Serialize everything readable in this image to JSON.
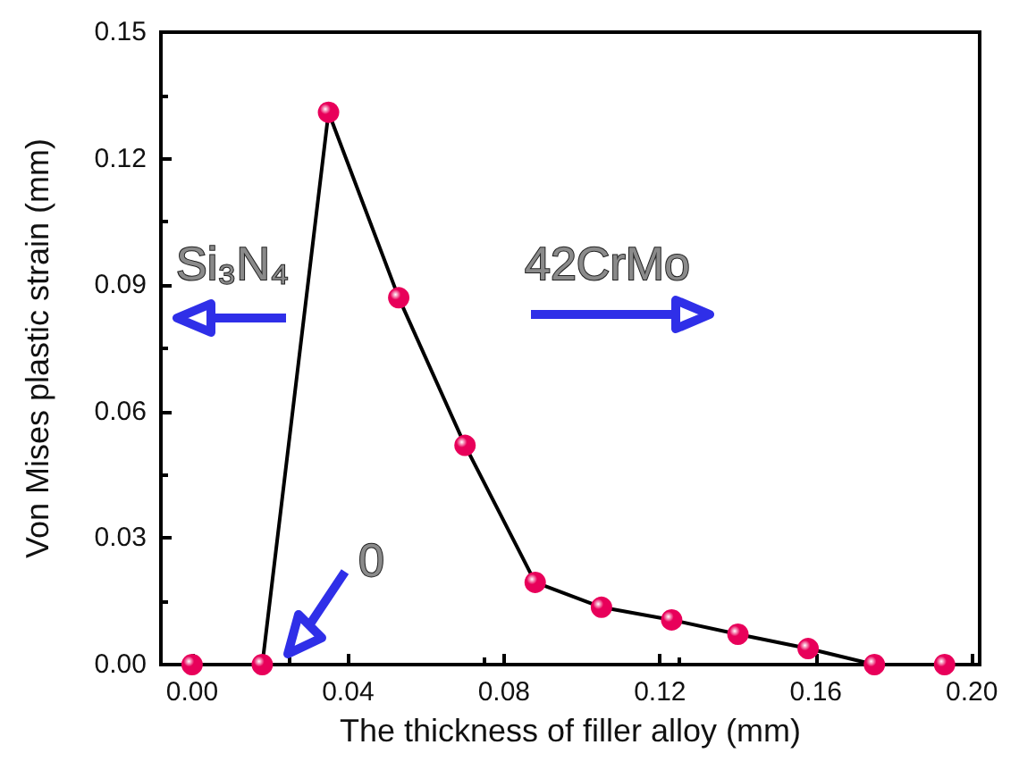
{
  "chart_data": {
    "type": "line",
    "xlabel": "The thickness of filler alloy (mm)",
    "ylabel": "Von Mises plastic strain (mm)",
    "x": [
      0,
      0.018,
      0.035,
      0.053,
      0.07,
      0.088,
      0.105,
      0.123,
      0.14,
      0.158,
      0.175,
      0.193
    ],
    "series": [
      {
        "color": "#e8005a",
        "values": [
          0,
          0,
          0.131,
          0.087,
          0.052,
          0.0195,
          0.0136,
          0.0106,
          0.0072,
          0.0038,
          0,
          0
        ]
      }
    ],
    "xlim": [
      -0.008,
      0.202
    ],
    "ylim": [
      0,
      0.15
    ],
    "xticks": [
      {
        "value": 0,
        "label": "0.00"
      },
      {
        "value": 0.04,
        "label": "0.04"
      },
      {
        "value": 0.08,
        "label": "0.08"
      },
      {
        "value": 0.12,
        "label": "0.12"
      },
      {
        "value": 0.16,
        "label": "0.16"
      },
      {
        "value": 0.2,
        "label": "0.20"
      }
    ],
    "yticks": [
      {
        "value": 0,
        "label": "0.00"
      },
      {
        "value": 0.03,
        "label": "0.03"
      },
      {
        "value": 0.06,
        "label": "0.06"
      },
      {
        "value": 0.09,
        "label": "0.09"
      },
      {
        "value": 0.12,
        "label": "0.12"
      },
      {
        "value": 0.15,
        "label": "0.15"
      }
    ],
    "annotations": [
      "Si₃N₄",
      "42CrMo",
      "0"
    ],
    "marker": "circle",
    "line_style": "solid",
    "grid": false
  }
}
